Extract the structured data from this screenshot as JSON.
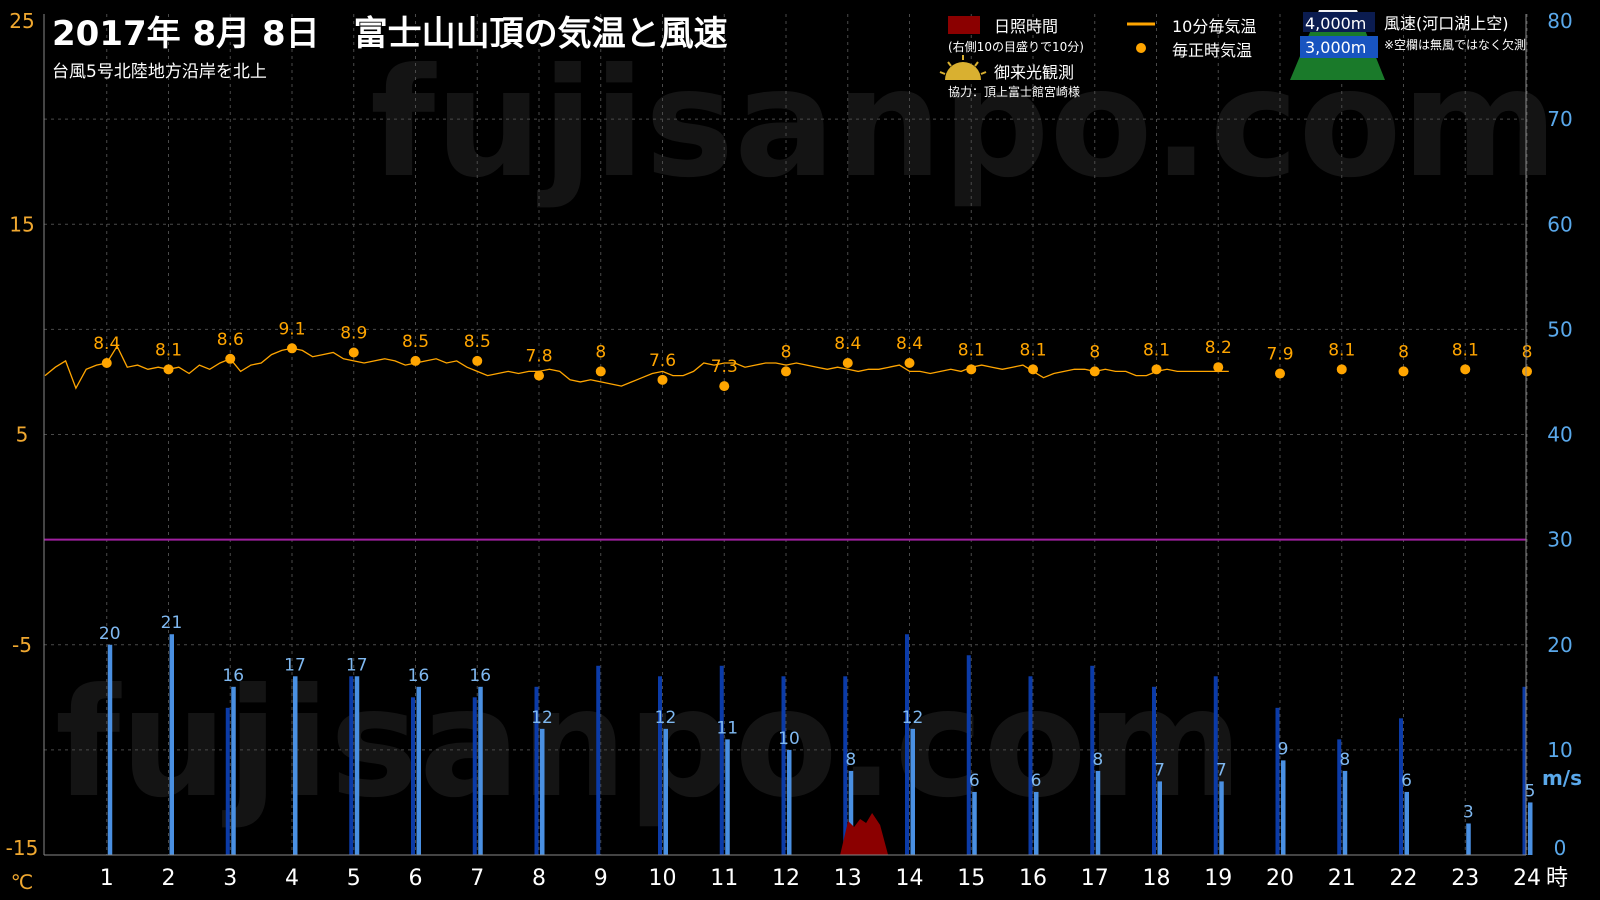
{
  "header": {
    "title": "2017年  8月  8日　富士山山頂の気温と風速",
    "subtitle": "台風5号北陸地方沿岸を北上"
  },
  "watermark": "fujisanpo.com",
  "legend": {
    "sunshine": "日照時間",
    "sunshine_note": "(右側10の目盛りで10分)",
    "temp10": "10分毎気温",
    "temp_hourly": "毎正時気温",
    "sunrise": "御来光観測",
    "cooperation": "協力：頂上富士館宮崎様",
    "wind_4000": "4,000m",
    "wind_3000": "3,000m",
    "wind_title": "風速(河口湖上空)",
    "wind_note": "※空欄は無風ではなく欠測"
  },
  "colors": {
    "temp": "#ffa500",
    "wind3000": "#4a90e2",
    "wind4000": "#0b3ba8",
    "sunshine": "#8b0000",
    "zero_line": "#a020a0",
    "axis_left": "#f0a830",
    "axis_right": "#5aa8ea"
  },
  "chart_data": {
    "type": "line",
    "x": [
      1,
      2,
      3,
      4,
      5,
      6,
      7,
      8,
      9,
      10,
      11,
      12,
      13,
      14,
      15,
      16,
      17,
      18,
      19,
      20,
      21,
      22,
      23,
      24
    ],
    "x_tick_labels": [
      "1",
      "2",
      "3",
      "4",
      "5",
      "6",
      "7",
      "8",
      "9",
      "10",
      "11",
      "12",
      "13",
      "14",
      "15",
      "16",
      "17",
      "18",
      "19",
      "20",
      "21",
      "22",
      "23",
      "24"
    ],
    "x_unit": "時",
    "y_left": {
      "unit": "℃",
      "range": [
        -15,
        25
      ],
      "ticks": [
        "25",
        "15",
        "5",
        "-5",
        "-15"
      ]
    },
    "y_right": {
      "unit": "m/s",
      "range": [
        0,
        80
      ],
      "ticks": [
        "80",
        "70",
        "60",
        "50",
        "40",
        "30",
        "20",
        "10",
        "0"
      ]
    },
    "temp_hourly": [
      8.4,
      8.1,
      8.6,
      9.1,
      8.9,
      8.5,
      8.5,
      7.8,
      8,
      7.6,
      7.3,
      8,
      8.4,
      8.4,
      8.1,
      8.1,
      8,
      8.1,
      8.2,
      7.9,
      8.1,
      8,
      8.1,
      8
    ],
    "temp_hourly_labels": [
      "8.4",
      "8.1",
      "8.6",
      "9.1",
      "8.9",
      "8.5",
      "8.5",
      "7.8",
      "8",
      "7.6",
      "7.3",
      "8",
      "8.4",
      "8.4",
      "8.1",
      "8.1",
      "8",
      "8.1",
      "8.2",
      "7.9",
      "8.1",
      "8",
      "8.1",
      "8"
    ],
    "temp_10min": {
      "x_start": 0.0,
      "step": 0.1667,
      "values": [
        7.8,
        8.2,
        8.5,
        7.2,
        8.1,
        8.3,
        8.4,
        9.2,
        8.2,
        8.3,
        8.1,
        8.2,
        8.1,
        8.2,
        7.9,
        8.3,
        8.1,
        8.4,
        8.6,
        8.0,
        8.3,
        8.4,
        8.8,
        9.0,
        9.1,
        9.0,
        8.7,
        8.8,
        8.9,
        8.6,
        8.5,
        8.4,
        8.5,
        8.6,
        8.5,
        8.3,
        8.4,
        8.5,
        8.6,
        8.4,
        8.5,
        8.2,
        8.0,
        7.8,
        7.9,
        8.0,
        7.9,
        8.0,
        8.0,
        8.1,
        8.0,
        7.6,
        7.5,
        7.6,
        7.5,
        7.4,
        7.3,
        7.5,
        7.7,
        7.9,
        8.0,
        7.8,
        7.8,
        8.0,
        8.4,
        8.3,
        8.4,
        8.4,
        8.2,
        8.3,
        8.4,
        8.4,
        8.3,
        8.4,
        8.3,
        8.2,
        8.1,
        8.2,
        8.1,
        8.0,
        8.1,
        8.1,
        8.2,
        8.3,
        8.0,
        8.0,
        7.9,
        8.0,
        8.1,
        8.0,
        8.2,
        8.3,
        8.2,
        8.1,
        8.2,
        8.3,
        8.0,
        7.7,
        7.9,
        8.0,
        8.1,
        8.1,
        8.0,
        8.1,
        8.0,
        8.0,
        7.8,
        7.8,
        8.0,
        8.1,
        8.0,
        8.0,
        8.0,
        8.0,
        8.0,
        8.0
      ]
    },
    "series": [
      {
        "name": "3,000m",
        "values": [
          20,
          21,
          16,
          17,
          17,
          16,
          16,
          12,
          null,
          12,
          11,
          10,
          8,
          12,
          6,
          6,
          8,
          7,
          7,
          9,
          8,
          6,
          3,
          5
        ],
        "labels": [
          "20",
          "21",
          "16",
          "17",
          "17",
          "16",
          "16",
          "12",
          "",
          "12",
          "11",
          "10",
          "8",
          "12",
          "6",
          "6",
          "8",
          "7",
          "7",
          "9",
          "8",
          "6",
          "3",
          "5"
        ]
      },
      {
        "name": "4,000m",
        "values": [
          null,
          null,
          14,
          null,
          17,
          15,
          15,
          16,
          18,
          17,
          18,
          17,
          17,
          21,
          19,
          17,
          18,
          16,
          17,
          14,
          11,
          13,
          null,
          16
        ]
      }
    ],
    "sunshine_minutes": [
      0,
      0,
      0,
      0,
      0,
      0,
      0,
      0,
      0,
      0,
      0,
      0,
      4,
      0,
      0,
      0,
      0,
      0,
      0,
      0,
      0,
      0,
      0,
      0
    ],
    "sunshine_x": 13.2,
    "grid": true
  }
}
